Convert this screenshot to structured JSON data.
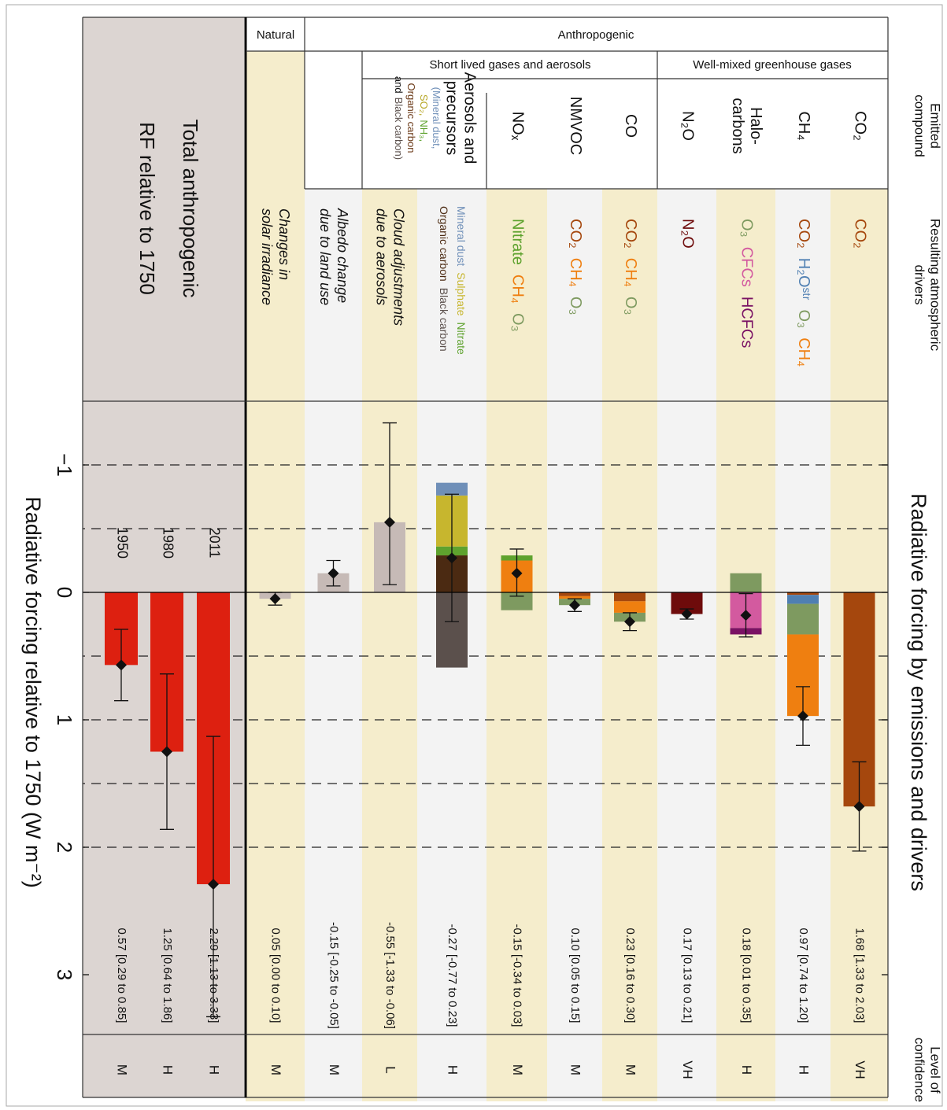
{
  "title": "Radiative forcing by emissions and drivers",
  "headers": {
    "emitted": [
      "Emitted",
      "compound"
    ],
    "drivers": [
      "Resulting atmospheric",
      "drivers"
    ],
    "confidence": [
      "Level of",
      "confidence"
    ]
  },
  "groups": {
    "natural": "Natural",
    "anthropogenic": "Anthropogenic",
    "short_lived": "Short lived gases and aerosols",
    "well_mixed": "Well-mixed greenhouse gases"
  },
  "chart_data": {
    "type": "bar",
    "orientation": "horizontal",
    "stacked": true,
    "xlabel": "Radiative forcing relative to 1750 (W m⁻²)",
    "xlim": [
      -1.5,
      3.5
    ],
    "xticks": [
      {
        "value": -1,
        "label": "−1"
      },
      0,
      1,
      2,
      3
    ],
    "dashed_grid": [
      -1,
      -0.5,
      0.5,
      1,
      1.5,
      2
    ],
    "label_colors": {
      "positive": "#d42a12",
      "negative": "#2e2c7e"
    },
    "total_title": [
      "Total anthropogenic",
      "RF relative to 1750"
    ],
    "rows": [
      {
        "compound": [
          [
            "CO₂"
          ]
        ],
        "segments": [
          {
            "name": "CO₂",
            "color": "#a5470d",
            "value": 1.68
          }
        ],
        "best": 1.68,
        "range": [
          1.33,
          2.03
        ],
        "value_label": "1.68 [1.33 to 2.03]",
        "confidence": "VH"
      },
      {
        "compound": [
          [
            "CH₄"
          ]
        ],
        "segments": [
          {
            "name": "CO₂",
            "color": "#a5470d",
            "value": 0.02
          },
          {
            "name": "H₂Oˢᵗʳ",
            "color": "#4f7fb2",
            "value": 0.07
          },
          {
            "name": "O₃",
            "color": "#7e9a60",
            "value": 0.24
          },
          {
            "name": "CH₄",
            "color": "#ef7f10",
            "value": 0.64
          }
        ],
        "best": 0.97,
        "range": [
          0.74,
          1.2
        ],
        "value_label": "0.97 [0.74 to 1.20]",
        "confidence": "H"
      },
      {
        "compound": [
          [
            "Halo-"
          ],
          [
            "carbons"
          ]
        ],
        "segments": [
          {
            "name": "O₃",
            "color": "#7e9a60",
            "value": -0.15
          },
          {
            "name": "CFCs",
            "color": "#d35a9f",
            "value": 0.28
          },
          {
            "name": "HCFCs",
            "color": "#7a1264",
            "value": 0.05
          }
        ],
        "best": 0.18,
        "range": [
          0.01,
          0.35
        ],
        "value_label": "0.18 [0.01 to 0.35]",
        "confidence": "H"
      },
      {
        "compound": [
          [
            "N₂O"
          ]
        ],
        "segments": [
          {
            "name": "N₂O",
            "color": "#6e0b0b",
            "value": 0.17
          }
        ],
        "best": 0.17,
        "range": [
          0.13,
          0.21
        ],
        "value_label": "0.17 [0.13 to 0.21]",
        "confidence": "VH"
      },
      {
        "compound": [
          [
            "CO"
          ]
        ],
        "segments": [
          {
            "name": "CO₂",
            "color": "#a5470d",
            "value": 0.07
          },
          {
            "name": "CH₄",
            "color": "#ef7f10",
            "value": 0.09
          },
          {
            "name": "O₃",
            "color": "#7e9a60",
            "value": 0.07
          }
        ],
        "best": 0.23,
        "range": [
          0.16,
          0.3
        ],
        "value_label": "0.23 [0.16 to 0.30]",
        "confidence": "M"
      },
      {
        "compound": [
          [
            "NMVOC"
          ]
        ],
        "segments": [
          {
            "name": "CO₂",
            "color": "#a5470d",
            "value": 0.03
          },
          {
            "name": "CH₄",
            "color": "#ef7f10",
            "value": 0.02
          },
          {
            "name": "O₃",
            "color": "#7e9a60",
            "value": 0.05
          }
        ],
        "best": 0.1,
        "range": [
          0.05,
          0.15
        ],
        "value_label": "0.10 [0.05 to 0.15]",
        "confidence": "M"
      },
      {
        "compound": [
          [
            "NOₓ"
          ]
        ],
        "segments": [
          {
            "name": "Nitrate",
            "color": "#5ea22e",
            "value": -0.04
          },
          {
            "name": "CH₄",
            "color": "#ef7f10",
            "value": -0.25
          },
          {
            "name": "O₃",
            "color": "#7e9a60",
            "value": 0.14
          }
        ],
        "best": -0.15,
        "range": [
          -0.34,
          0.03
        ],
        "value_label": "-0.15 [-0.34 to 0.03]",
        "confidence": "M"
      },
      {
        "compound": [
          [
            "Aerosols and"
          ],
          [
            "precursors"
          ],
          [
            {
              "text": "(Mineral dust,",
              "color": "#6f8fb8"
            }
          ],
          [
            {
              "text": "SO₂,",
              "color": "#b8a82a"
            },
            {
              "text": "NH₃,",
              "color": "#5ea22e"
            }
          ],
          [
            {
              "text": "Organic carbon",
              "color": "#6b3a18"
            }
          ],
          [
            "and",
            {
              "text": "Black carbon)",
              "color": "#5b504c"
            }
          ]
        ],
        "segments": [
          {
            "name": "Mineral dust",
            "color": "#6f8fb8",
            "value": -0.1
          },
          {
            "name": "Sulphate",
            "color": "#c7b62e",
            "value": -0.4
          },
          {
            "name": "Nitrate",
            "color": "#5ea22e",
            "value": -0.07
          },
          {
            "name": "Organic carbon",
            "color": "#4b2a12",
            "value": -0.29
          },
          {
            "name": "Black carbon",
            "color": "#5b504c",
            "value": 0.59
          }
        ],
        "best": -0.27,
        "range": [
          -0.77,
          0.23
        ],
        "value_label": "-0.27 [-0.77 to 0.23]",
        "confidence": "H"
      },
      {
        "label": [
          "Cloud adjustments",
          "due to aerosols"
        ],
        "color": "#c6bab6",
        "best": -0.55,
        "range": [
          -1.33,
          -0.06
        ],
        "value_label": "-0.55 [-1.33 to -0.06]",
        "confidence": "L"
      },
      {
        "label": [
          "Albedo change",
          "due to land use"
        ],
        "color": "#c6bab6",
        "best": -0.15,
        "range": [
          -0.25,
          -0.05
        ],
        "value_label": "-0.15 [-0.25 to -0.05]",
        "confidence": "M"
      },
      {
        "label": [
          "Changes in",
          "solar irradiance"
        ],
        "color": "#c6bab6",
        "best": 0.05,
        "range": [
          0.0,
          0.1
        ],
        "value_label": "0.05 [0.00 to 0.10]",
        "confidence": "M"
      },
      {
        "year": "2011",
        "color": "#dd2010",
        "best": 2.29,
        "range": [
          1.13,
          3.33
        ],
        "value_label": "2.29 [1.13 to 3.33]",
        "confidence": "H"
      },
      {
        "year": "1980",
        "color": "#dd2010",
        "best": 1.25,
        "range": [
          0.64,
          1.86
        ],
        "value_label": "1.25 [0.64 to 1.86]",
        "confidence": "H"
      },
      {
        "year": "1950",
        "color": "#dd2010",
        "best": 0.57,
        "range": [
          0.29,
          0.85
        ],
        "value_label": "0.57 [0.29 to 0.85]",
        "confidence": "M"
      }
    ]
  }
}
